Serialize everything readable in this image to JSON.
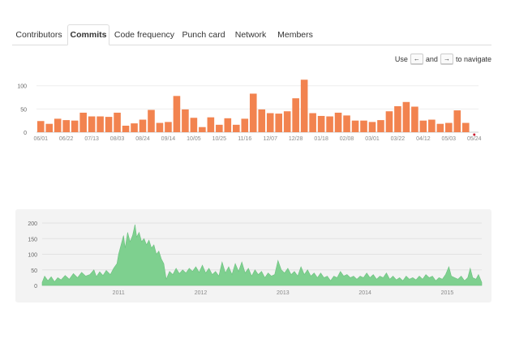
{
  "tabs": [
    {
      "label": "Contributors",
      "selected": false
    },
    {
      "label": "Commits",
      "selected": true
    },
    {
      "label": "Code frequency",
      "selected": false
    },
    {
      "label": "Punch card",
      "selected": false
    },
    {
      "label": "Network",
      "selected": false
    },
    {
      "label": "Members",
      "selected": false
    }
  ],
  "navigate_hint": {
    "prefix": "Use",
    "left_key": "←",
    "middle": "and",
    "right_key": "→",
    "suffix": "to navigate"
  },
  "colors": {
    "bars": "#f2834f",
    "area": "#7ed08f",
    "highlight_dot": "#cc1e32"
  },
  "chart_data": [
    {
      "type": "bar",
      "title": "",
      "xlabel": "",
      "ylabel": "",
      "ylim": [
        0,
        110
      ],
      "yticks": [
        0,
        50,
        100
      ],
      "grid": true,
      "xtick_labels": [
        "06/01",
        "06/22",
        "07/13",
        "08/03",
        "08/24",
        "09/14",
        "10/05",
        "10/25",
        "11/16",
        "12/07",
        "12/28",
        "01/18",
        "02/08",
        "03/01",
        "03/22",
        "04/12",
        "05/03",
        "05/24"
      ],
      "values": [
        24,
        18,
        29,
        26,
        25,
        42,
        34,
        34,
        33,
        42,
        14,
        19,
        27,
        48,
        20,
        22,
        78,
        49,
        31,
        11,
        32,
        16,
        30,
        16,
        29,
        83,
        49,
        41,
        40,
        45,
        73,
        113,
        41,
        35,
        34,
        42,
        36,
        25,
        25,
        22,
        26,
        45,
        56,
        65,
        55,
        25,
        27,
        18,
        20,
        47,
        20,
        0
      ],
      "highlighted_index": 51
    },
    {
      "type": "area",
      "title": "",
      "xlabel": "",
      "ylabel": "",
      "ylim": [
        0,
        200
      ],
      "yticks": [
        0,
        50,
        100,
        150,
        200
      ],
      "grid": true,
      "xtick_labels": [
        "2011",
        "2012",
        "2013",
        "2014",
        "2015"
      ],
      "x_range": [
        2010.07,
        2015.42
      ],
      "points": [
        [
          2010.07,
          10
        ],
        [
          2010.1,
          30
        ],
        [
          2010.14,
          15
        ],
        [
          2010.18,
          28
        ],
        [
          2010.22,
          12
        ],
        [
          2010.26,
          25
        ],
        [
          2010.3,
          18
        ],
        [
          2010.35,
          32
        ],
        [
          2010.4,
          20
        ],
        [
          2010.45,
          38
        ],
        [
          2010.5,
          25
        ],
        [
          2010.55,
          42
        ],
        [
          2010.6,
          30
        ],
        [
          2010.65,
          35
        ],
        [
          2010.7,
          50
        ],
        [
          2010.73,
          28
        ],
        [
          2010.77,
          44
        ],
        [
          2010.81,
          32
        ],
        [
          2010.85,
          48
        ],
        [
          2010.9,
          35
        ],
        [
          2010.94,
          55
        ],
        [
          2010.98,
          70
        ],
        [
          2011.0,
          100
        ],
        [
          2011.03,
          130
        ],
        [
          2011.06,
          160
        ],
        [
          2011.08,
          120
        ],
        [
          2011.11,
          170
        ],
        [
          2011.14,
          140
        ],
        [
          2011.17,
          160
        ],
        [
          2011.2,
          195
        ],
        [
          2011.22,
          155
        ],
        [
          2011.25,
          170
        ],
        [
          2011.28,
          140
        ],
        [
          2011.31,
          150
        ],
        [
          2011.34,
          130
        ],
        [
          2011.37,
          145
        ],
        [
          2011.4,
          120
        ],
        [
          2011.43,
          130
        ],
        [
          2011.46,
          100
        ],
        [
          2011.49,
          110
        ],
        [
          2011.52,
          85
        ],
        [
          2011.55,
          70
        ],
        [
          2011.58,
          20
        ],
        [
          2011.62,
          45
        ],
        [
          2011.66,
          35
        ],
        [
          2011.7,
          55
        ],
        [
          2011.74,
          38
        ],
        [
          2011.78,
          50
        ],
        [
          2011.82,
          40
        ],
        [
          2011.86,
          55
        ],
        [
          2011.9,
          45
        ],
        [
          2011.94,
          60
        ],
        [
          2011.98,
          42
        ],
        [
          2012.02,
          65
        ],
        [
          2012.06,
          40
        ],
        [
          2012.1,
          55
        ],
        [
          2012.14,
          35
        ],
        [
          2012.18,
          45
        ],
        [
          2012.22,
          30
        ],
        [
          2012.26,
          75
        ],
        [
          2012.3,
          40
        ],
        [
          2012.34,
          60
        ],
        [
          2012.38,
          35
        ],
        [
          2012.42,
          70
        ],
        [
          2012.46,
          45
        ],
        [
          2012.5,
          75
        ],
        [
          2012.54,
          40
        ],
        [
          2012.58,
          55
        ],
        [
          2012.62,
          30
        ],
        [
          2012.66,
          50
        ],
        [
          2012.7,
          35
        ],
        [
          2012.74,
          45
        ],
        [
          2012.78,
          25
        ],
        [
          2012.82,
          40
        ],
        [
          2012.86,
          30
        ],
        [
          2012.9,
          35
        ],
        [
          2012.94,
          80
        ],
        [
          2012.98,
          50
        ],
        [
          2013.02,
          40
        ],
        [
          2013.06,
          55
        ],
        [
          2013.1,
          35
        ],
        [
          2013.14,
          45
        ],
        [
          2013.18,
          30
        ],
        [
          2013.22,
          60
        ],
        [
          2013.26,
          35
        ],
        [
          2013.3,
          50
        ],
        [
          2013.34,
          30
        ],
        [
          2013.38,
          40
        ],
        [
          2013.42,
          25
        ],
        [
          2013.46,
          40
        ],
        [
          2013.5,
          25
        ],
        [
          2013.54,
          30
        ],
        [
          2013.58,
          15
        ],
        [
          2013.62,
          30
        ],
        [
          2013.66,
          25
        ],
        [
          2013.7,
          45
        ],
        [
          2013.74,
          30
        ],
        [
          2013.78,
          35
        ],
        [
          2013.82,
          25
        ],
        [
          2013.86,
          30
        ],
        [
          2013.9,
          20
        ],
        [
          2013.94,
          30
        ],
        [
          2013.98,
          25
        ],
        [
          2014.02,
          40
        ],
        [
          2014.06,
          25
        ],
        [
          2014.1,
          35
        ],
        [
          2014.14,
          20
        ],
        [
          2014.18,
          30
        ],
        [
          2014.22,
          25
        ],
        [
          2014.26,
          40
        ],
        [
          2014.3,
          20
        ],
        [
          2014.34,
          30
        ],
        [
          2014.38,
          18
        ],
        [
          2014.42,
          25
        ],
        [
          2014.46,
          15
        ],
        [
          2014.5,
          30
        ],
        [
          2014.54,
          20
        ],
        [
          2014.58,
          25
        ],
        [
          2014.62,
          18
        ],
        [
          2014.66,
          30
        ],
        [
          2014.7,
          20
        ],
        [
          2014.74,
          35
        ],
        [
          2014.78,
          25
        ],
        [
          2014.82,
          30
        ],
        [
          2014.86,
          15
        ],
        [
          2014.9,
          25
        ],
        [
          2014.94,
          20
        ],
        [
          2014.98,
          35
        ],
        [
          2015.02,
          60
        ],
        [
          2015.05,
          30
        ],
        [
          2015.09,
          25
        ],
        [
          2015.13,
          20
        ],
        [
          2015.17,
          30
        ],
        [
          2015.21,
          15
        ],
        [
          2015.25,
          25
        ],
        [
          2015.28,
          55
        ],
        [
          2015.31,
          25
        ],
        [
          2015.35,
          20
        ],
        [
          2015.38,
          35
        ],
        [
          2015.42,
          10
        ]
      ]
    }
  ]
}
